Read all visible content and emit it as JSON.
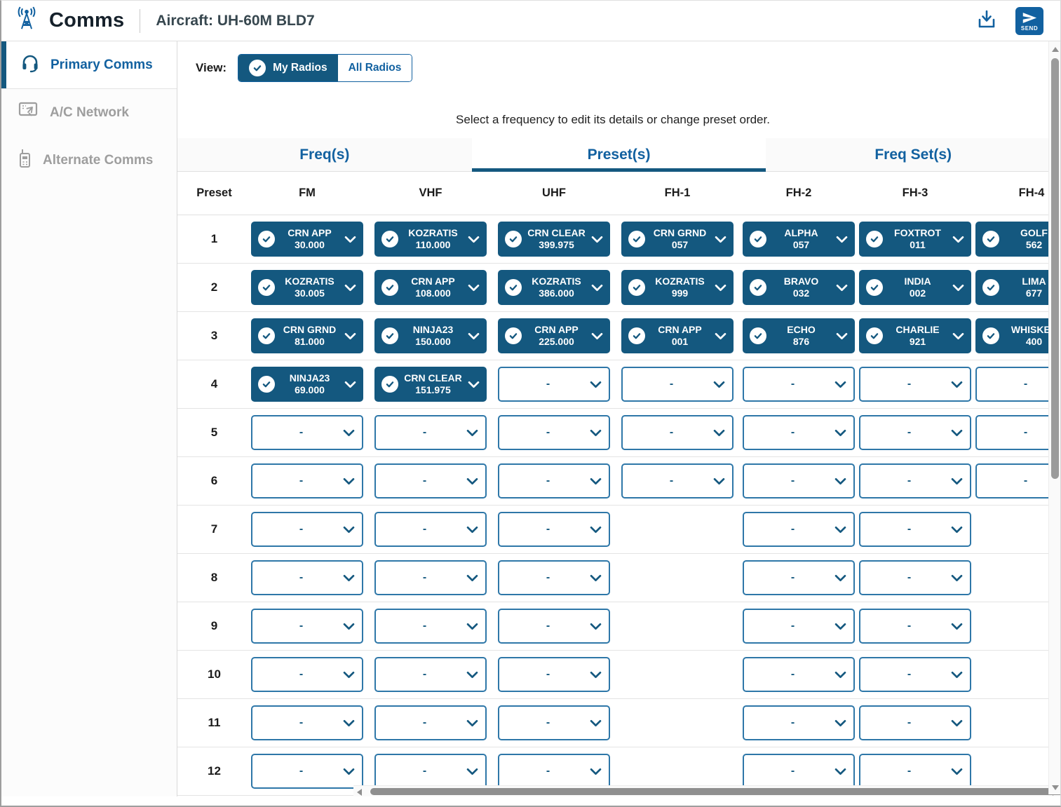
{
  "header": {
    "app_title": "Comms",
    "aircraft_label": "Aircraft: UH-60M BLD7",
    "send_label": "SEND"
  },
  "sidebar": {
    "items": [
      {
        "label": "Primary Comms",
        "icon": "headset-icon",
        "active": true
      },
      {
        "label": "A/C Network",
        "icon": "aircraft-network-icon",
        "active": false
      },
      {
        "label": "Alternate Comms",
        "icon": "handheld-radio-icon",
        "active": false
      }
    ]
  },
  "view_bar": {
    "label": "View:",
    "options": [
      {
        "label": "My Radios",
        "selected": true
      },
      {
        "label": "All Radios",
        "selected": false
      }
    ],
    "instruction": "Select a frequency to edit its details or change preset order."
  },
  "tabs": [
    {
      "label": "Freq(s)",
      "active": false
    },
    {
      "label": "Preset(s)",
      "active": true
    },
    {
      "label": "Freq Set(s)",
      "active": false
    }
  ],
  "table": {
    "columns": [
      "Preset",
      "FM",
      "VHF",
      "UHF",
      "FH-1",
      "FH-2",
      "FH-3",
      "FH-4"
    ],
    "empty_placeholder": "-",
    "rows": [
      {
        "preset": "1",
        "cells": [
          {
            "state": "filled",
            "name": "CRN APP",
            "value": "30.000"
          },
          {
            "state": "filled",
            "name": "KOZRATIS",
            "value": "110.000"
          },
          {
            "state": "filled",
            "name": "CRN CLEAR",
            "value": "399.975"
          },
          {
            "state": "filled",
            "name": "CRN GRND",
            "value": "057"
          },
          {
            "state": "filled",
            "name": "ALPHA",
            "value": "057"
          },
          {
            "state": "filled",
            "name": "FOXTROT",
            "value": "011"
          },
          {
            "state": "filled",
            "name": "GOLF",
            "value": "562"
          }
        ]
      },
      {
        "preset": "2",
        "cells": [
          {
            "state": "filled",
            "name": "KOZRATIS",
            "value": "30.005"
          },
          {
            "state": "filled",
            "name": "CRN APP",
            "value": "108.000"
          },
          {
            "state": "filled",
            "name": "KOZRATIS",
            "value": "386.000"
          },
          {
            "state": "filled",
            "name": "KOZRATIS",
            "value": "999"
          },
          {
            "state": "filled",
            "name": "BRAVO",
            "value": "032"
          },
          {
            "state": "filled",
            "name": "INDIA",
            "value": "002"
          },
          {
            "state": "filled",
            "name": "LIMA",
            "value": "677"
          }
        ]
      },
      {
        "preset": "3",
        "cells": [
          {
            "state": "filled",
            "name": "CRN GRND",
            "value": "81.000"
          },
          {
            "state": "filled",
            "name": "NINJA23",
            "value": "150.000"
          },
          {
            "state": "filled",
            "name": "CRN APP",
            "value": "225.000"
          },
          {
            "state": "filled",
            "name": "CRN APP",
            "value": "001"
          },
          {
            "state": "filled",
            "name": "ECHO",
            "value": "876"
          },
          {
            "state": "filled",
            "name": "CHARLIE",
            "value": "921"
          },
          {
            "state": "filled",
            "name": "WHISKEY",
            "value": "400"
          }
        ]
      },
      {
        "preset": "4",
        "cells": [
          {
            "state": "filled",
            "name": "NINJA23",
            "value": "69.000"
          },
          {
            "state": "filled",
            "name": "CRN CLEAR",
            "value": "151.975"
          },
          {
            "state": "empty"
          },
          {
            "state": "empty"
          },
          {
            "state": "empty"
          },
          {
            "state": "empty"
          },
          {
            "state": "empty"
          }
        ]
      },
      {
        "preset": "5",
        "cells": [
          {
            "state": "empty"
          },
          {
            "state": "empty"
          },
          {
            "state": "empty"
          },
          {
            "state": "empty"
          },
          {
            "state": "empty"
          },
          {
            "state": "empty"
          },
          {
            "state": "empty"
          }
        ]
      },
      {
        "preset": "6",
        "cells": [
          {
            "state": "empty"
          },
          {
            "state": "empty"
          },
          {
            "state": "empty"
          },
          {
            "state": "empty"
          },
          {
            "state": "empty"
          },
          {
            "state": "empty"
          },
          {
            "state": "empty"
          }
        ]
      },
      {
        "preset": "7",
        "cells": [
          {
            "state": "empty"
          },
          {
            "state": "empty"
          },
          {
            "state": "empty"
          },
          {
            "state": "none"
          },
          {
            "state": "empty"
          },
          {
            "state": "empty"
          },
          {
            "state": "none"
          }
        ]
      },
      {
        "preset": "8",
        "cells": [
          {
            "state": "empty"
          },
          {
            "state": "empty"
          },
          {
            "state": "empty"
          },
          {
            "state": "none"
          },
          {
            "state": "empty"
          },
          {
            "state": "empty"
          },
          {
            "state": "none"
          }
        ]
      },
      {
        "preset": "9",
        "cells": [
          {
            "state": "empty"
          },
          {
            "state": "empty"
          },
          {
            "state": "empty"
          },
          {
            "state": "none"
          },
          {
            "state": "empty"
          },
          {
            "state": "empty"
          },
          {
            "state": "none"
          }
        ]
      },
      {
        "preset": "10",
        "cells": [
          {
            "state": "empty"
          },
          {
            "state": "empty"
          },
          {
            "state": "empty"
          },
          {
            "state": "none"
          },
          {
            "state": "empty"
          },
          {
            "state": "empty"
          },
          {
            "state": "none"
          }
        ]
      },
      {
        "preset": "11",
        "cells": [
          {
            "state": "empty"
          },
          {
            "state": "empty"
          },
          {
            "state": "empty"
          },
          {
            "state": "none"
          },
          {
            "state": "empty"
          },
          {
            "state": "empty"
          },
          {
            "state": "none"
          }
        ]
      },
      {
        "preset": "12",
        "cells": [
          {
            "state": "empty"
          },
          {
            "state": "empty"
          },
          {
            "state": "empty"
          },
          {
            "state": "none"
          },
          {
            "state": "empty"
          },
          {
            "state": "empty"
          },
          {
            "state": "none"
          }
        ]
      }
    ]
  },
  "colors": {
    "accent_blue": "#1261a0",
    "button_blue": "#14587f",
    "inactive_gray": "#9e9e9e"
  },
  "icons": {
    "logo": "radio-tower-icon",
    "top_right": [
      "download-icon",
      "send-icon"
    ],
    "dropdown": [
      "check-circle-icon",
      "chevron-down-icon"
    ]
  }
}
